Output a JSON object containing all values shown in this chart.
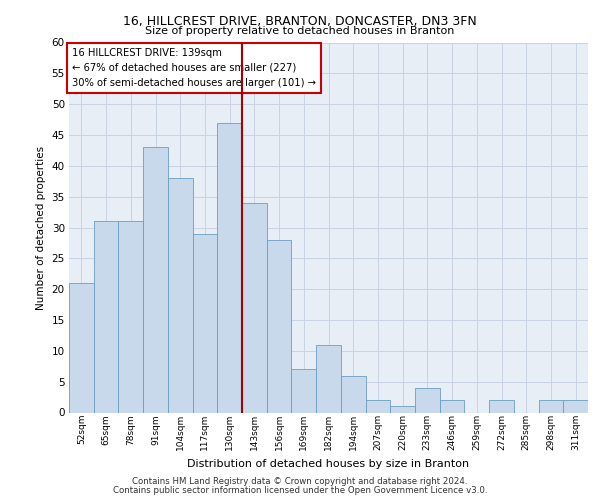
{
  "title1": "16, HILLCREST DRIVE, BRANTON, DONCASTER, DN3 3FN",
  "title2": "Size of property relative to detached houses in Branton",
  "xlabel": "Distribution of detached houses by size in Branton",
  "ylabel": "Number of detached properties",
  "categories": [
    "52sqm",
    "65sqm",
    "78sqm",
    "91sqm",
    "104sqm",
    "117sqm",
    "130sqm",
    "143sqm",
    "156sqm",
    "169sqm",
    "182sqm",
    "194sqm",
    "207sqm",
    "220sqm",
    "233sqm",
    "246sqm",
    "259sqm",
    "272sqm",
    "285sqm",
    "298sqm",
    "311sqm"
  ],
  "values": [
    21,
    31,
    31,
    43,
    38,
    29,
    47,
    34,
    28,
    7,
    11,
    6,
    2,
    1,
    4,
    2,
    0,
    2,
    0,
    2,
    2
  ],
  "bar_color": "#c9d9ec",
  "bar_edge_color": "#6b9dc2",
  "grid_color": "#c8d4e3",
  "background_color": "#e8eef6",
  "vline_x": 6.5,
  "vline_color": "#aa0000",
  "annotation_line1": "16 HILLCREST DRIVE: 139sqm",
  "annotation_line2": "← 67% of detached houses are smaller (227)",
  "annotation_line3": "30% of semi-detached houses are larger (101) →",
  "annotation_box_color": "#ffffff",
  "annotation_box_edge": "#cc0000",
  "footer1": "Contains HM Land Registry data © Crown copyright and database right 2024.",
  "footer2": "Contains public sector information licensed under the Open Government Licence v3.0.",
  "ylim": [
    0,
    60
  ],
  "yticks": [
    0,
    5,
    10,
    15,
    20,
    25,
    30,
    35,
    40,
    45,
    50,
    55,
    60
  ]
}
